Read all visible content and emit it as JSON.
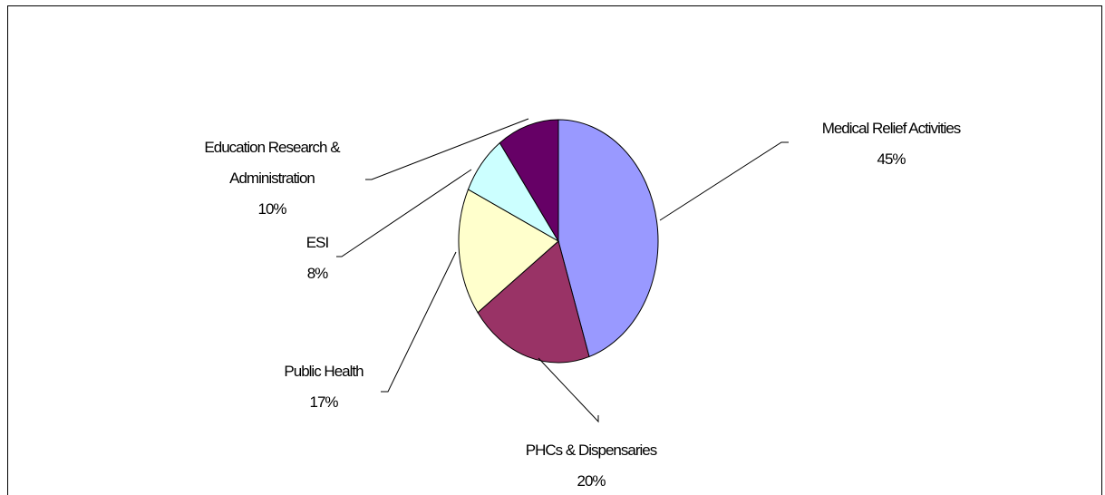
{
  "chart_data": {
    "type": "pie",
    "categories": [
      "Medical Relief Activities",
      "PHCs & Dispensaries",
      "Public Health",
      "ESI",
      "Education Research & Administration"
    ],
    "values": [
      45,
      20,
      17,
      8,
      10
    ],
    "value_labels": [
      "45%",
      "20%",
      "17%",
      "8%",
      "10%"
    ],
    "colors": [
      "#9999ff",
      "#993366",
      "#ffffcc",
      "#ccffff",
      "#660066"
    ]
  }
}
